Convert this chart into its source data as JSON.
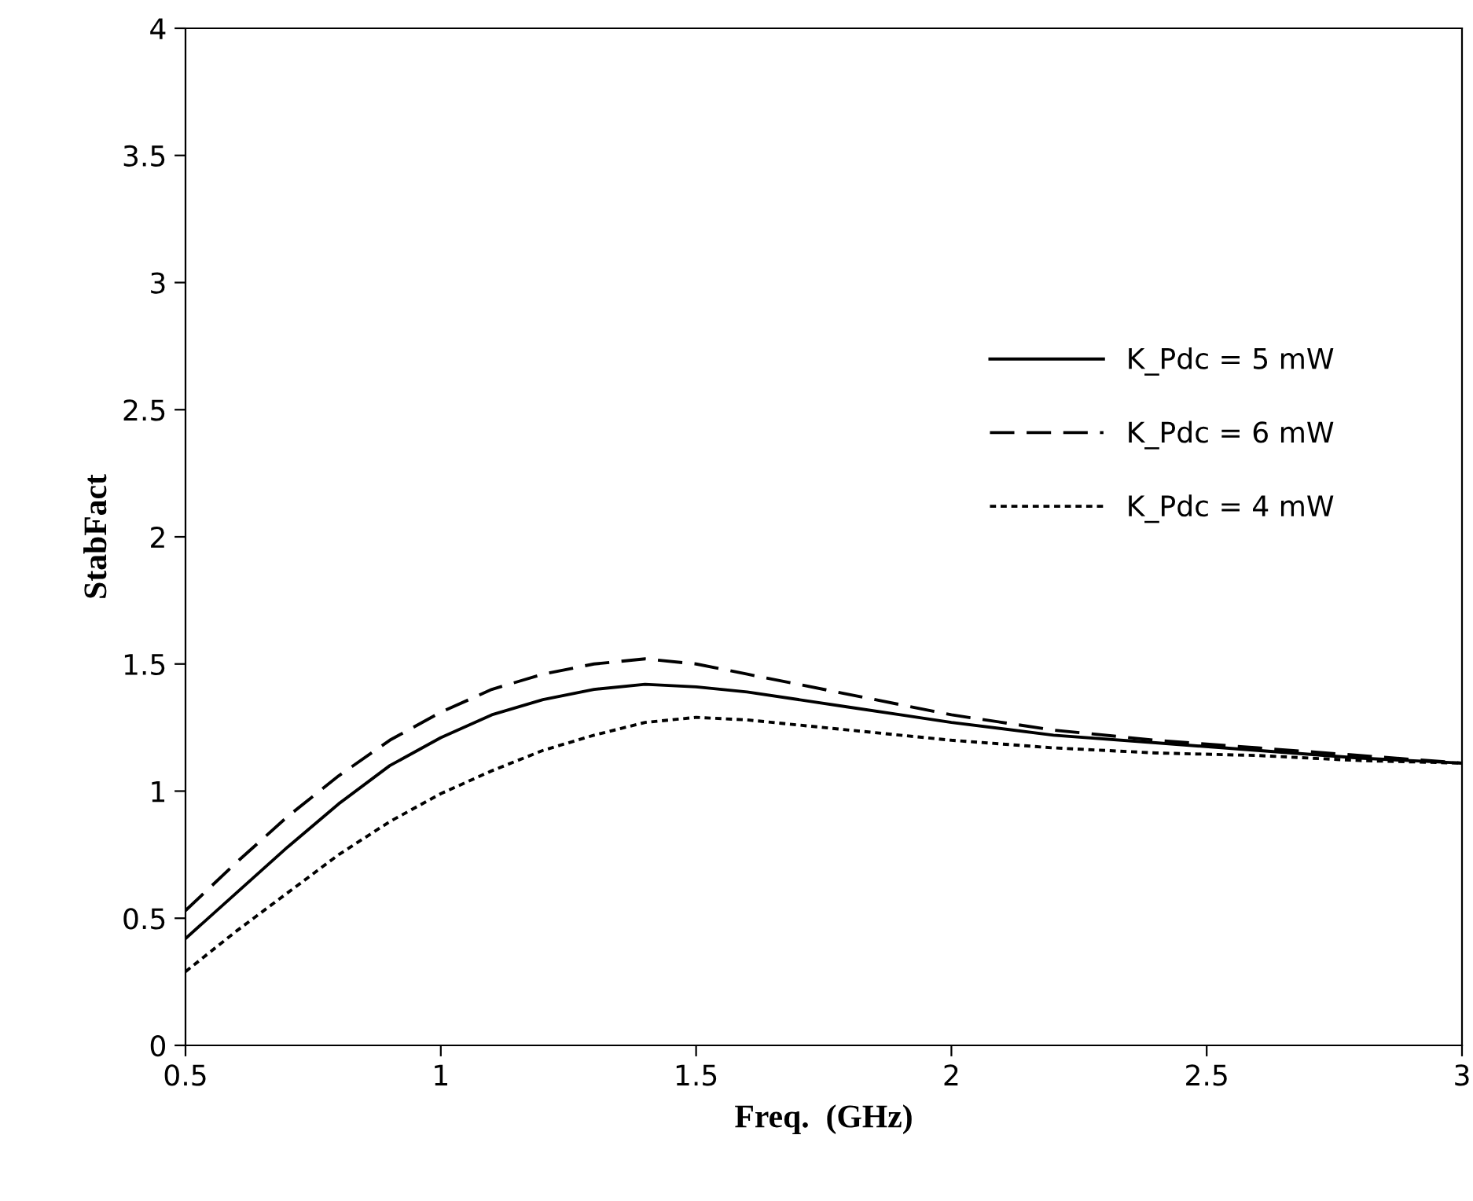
{
  "chart_data": {
    "type": "line",
    "xlabel": "Freq.  (GHz)",
    "ylabel": "StabFact",
    "x": [
      0.5,
      0.6,
      0.7,
      0.8,
      0.9,
      1.0,
      1.1,
      1.2,
      1.3,
      1.4,
      1.5,
      1.6,
      1.7,
      1.8,
      1.9,
      2.0,
      2.2,
      2.4,
      2.6,
      2.8,
      3.0
    ],
    "series": [
      {
        "name": "K_Pdc = 5 mW",
        "color": "#000000",
        "line_style": "solid",
        "values": [
          0.42,
          0.6,
          0.78,
          0.95,
          1.1,
          1.21,
          1.3,
          1.36,
          1.4,
          1.42,
          1.41,
          1.39,
          1.36,
          1.33,
          1.3,
          1.27,
          1.22,
          1.19,
          1.16,
          1.13,
          1.11
        ]
      },
      {
        "name": "K_Pdc = 6 mW",
        "color": "#000000",
        "line_style": "dashed",
        "values": [
          0.53,
          0.72,
          0.9,
          1.06,
          1.2,
          1.31,
          1.4,
          1.46,
          1.5,
          1.52,
          1.5,
          1.46,
          1.42,
          1.38,
          1.34,
          1.3,
          1.24,
          1.2,
          1.17,
          1.14,
          1.11
        ]
      },
      {
        "name": "K_Pdc = 4 mW",
        "color": "#000000",
        "line_style": "dotted",
        "values": [
          0.29,
          0.45,
          0.6,
          0.75,
          0.88,
          0.99,
          1.08,
          1.16,
          1.22,
          1.27,
          1.29,
          1.28,
          1.26,
          1.24,
          1.22,
          1.2,
          1.17,
          1.15,
          1.14,
          1.12,
          1.11
        ]
      }
    ],
    "xlim": [
      0.5,
      3
    ],
    "xticks": [
      0.5,
      1,
      1.5,
      2,
      2.5,
      3
    ],
    "ylim": [
      0,
      4
    ],
    "yticks": [
      0,
      0.5,
      1,
      1.5,
      2,
      2.5,
      3,
      3.5,
      4
    ],
    "grid": false,
    "legend": "right"
  }
}
